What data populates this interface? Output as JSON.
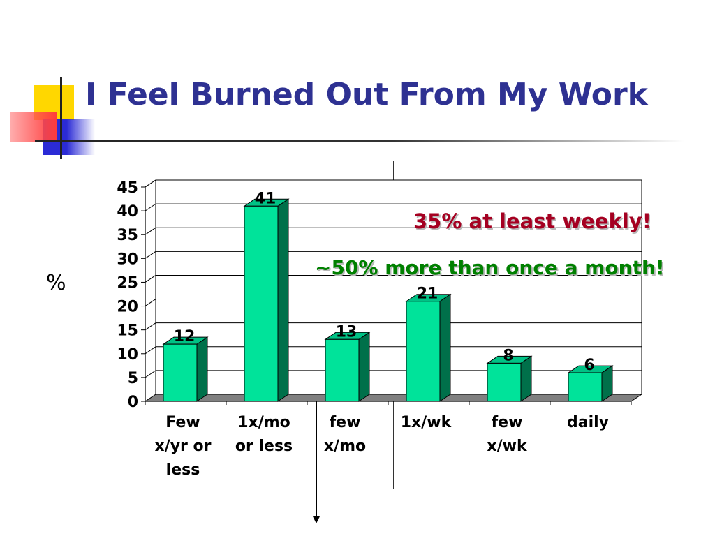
{
  "slide": {
    "title": "I Feel Burned Out From My Work",
    "y_side_label": "%",
    "annotations": {
      "weekly": "35% at least weekly!",
      "monthly": "~50% more than once a month!"
    }
  },
  "colors": {
    "title": "#2e3192",
    "bar_front": "#00e39a",
    "bar_side": "#00704a",
    "bar_top": "#00c285",
    "annotation_weekly": "#a50021",
    "annotation_monthly": "#008000",
    "deco_yellow": "#ffd700",
    "deco_blue": "#2b2bd6",
    "deco_red": "#ff3b3b"
  },
  "chart_data": {
    "type": "bar",
    "categories": [
      [
        "Few",
        "x/yr or",
        "less"
      ],
      [
        "1x/mo",
        "or less"
      ],
      [
        "few",
        "x/mo"
      ],
      [
        "1x/wk"
      ],
      [
        "few",
        "x/wk"
      ],
      [
        "daily"
      ]
    ],
    "values": [
      12,
      41,
      13,
      21,
      8,
      6
    ],
    "data_labels": [
      "12",
      "41",
      "13",
      "21",
      "8",
      "6"
    ],
    "yticks": [
      "0",
      "5",
      "10",
      "15",
      "20",
      "25",
      "30",
      "35",
      "40",
      "45"
    ],
    "ylim": [
      0,
      45
    ],
    "grid": true,
    "three_d": true
  }
}
